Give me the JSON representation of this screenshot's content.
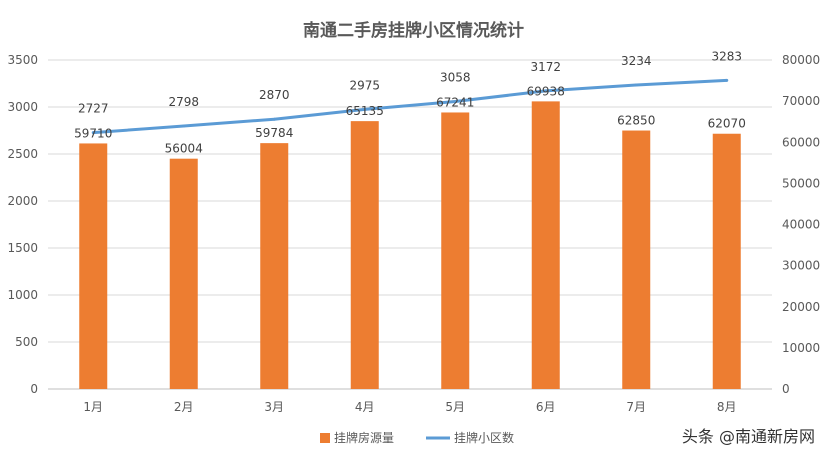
{
  "chart_data": {
    "type": "bar",
    "title": "南通二手房挂牌小区情况统计",
    "categories": [
      "1月",
      "2月",
      "3月",
      "4月",
      "5月",
      "6月",
      "7月",
      "8月"
    ],
    "series": [
      {
        "name": "挂牌房源量",
        "type": "bar",
        "axis": "right",
        "values": [
          59710,
          56004,
          59784,
          65135,
          67241,
          69938,
          62850,
          62070
        ],
        "color": "#ED7D31"
      },
      {
        "name": "挂牌小区数",
        "type": "line",
        "axis": "left",
        "values": [
          2727,
          2798,
          2870,
          2975,
          3058,
          3172,
          3234,
          3283
        ],
        "color": "#5B9BD5"
      }
    ],
    "y_left": {
      "min": 0,
      "max": 3500,
      "ticks": [
        "0",
        "500",
        "1000",
        "1500",
        "2000",
        "2500",
        "3000",
        "3500"
      ]
    },
    "y_right": {
      "min": 0,
      "max": 80000,
      "ticks": [
        "0",
        "10000",
        "20000",
        "30000",
        "40000",
        "50000",
        "60000",
        "70000",
        "80000"
      ]
    },
    "grid": true,
    "legend_position": "bottom"
  },
  "watermark": "头条 @南通新房网"
}
